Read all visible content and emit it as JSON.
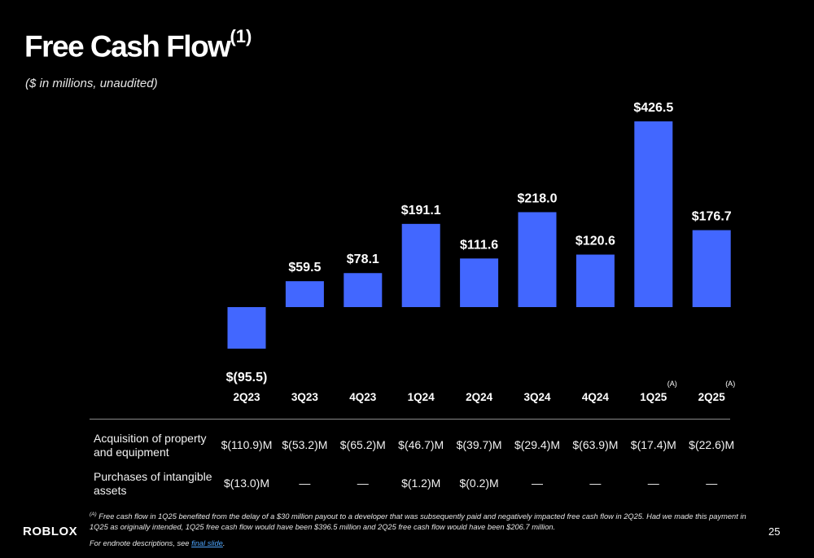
{
  "header": {
    "title": "Free Cash Flow",
    "title_note": "(1)",
    "subtitle": "($ in millions, unaudited)"
  },
  "chart_data": {
    "type": "bar",
    "categories": [
      "2Q23",
      "3Q23",
      "4Q23",
      "1Q24",
      "2Q24",
      "3Q24",
      "4Q24",
      "1Q25",
      "2Q25"
    ],
    "category_notes": [
      "",
      "",
      "",
      "",
      "",
      "",
      "",
      "(A)",
      "(A)"
    ],
    "series": [
      {
        "values": [
          -95.5,
          59.5,
          78.1,
          191.1,
          111.6,
          218.0,
          120.6,
          426.5,
          176.7
        ]
      }
    ],
    "data_labels": [
      "$(95.5)",
      "$59.5",
      "$78.1",
      "$191.1",
      "$111.6",
      "$218.0",
      "$120.6",
      "$426.5",
      "$176.7"
    ],
    "bar_color": "#4267FF",
    "ylim": [
      -95.5,
      426.5
    ],
    "grid": false
  },
  "table": {
    "rows": [
      {
        "label": "Acquisition of property and equipment",
        "values": [
          "$(110.9)M",
          "$(53.2)M",
          "$(65.2)M",
          "$(46.7)M",
          "$(39.7)M",
          "$(29.4)M",
          "$(63.9)M",
          "$(17.4)M",
          "$(22.6)M"
        ]
      },
      {
        "label": "Purchases of intangible assets",
        "values": [
          "$(13.0)M",
          "—",
          "—",
          "$(1.2)M",
          "$(0.2)M",
          "—",
          "—",
          "—",
          "—"
        ]
      }
    ]
  },
  "footnote": {
    "marker": "(A)",
    "text": "Free cash flow in 1Q25 benefited from the delay of a $30 million payout to a developer that was subsequently paid and negatively impacted free cash flow in 2Q25. Had we made this payment in 1Q25 as originally intended, 1Q25 free cash flow would have been $396.5 million and 2Q25 free cash flow would have been $206.7 million."
  },
  "endnote": {
    "prefix": "For endnote descriptions, see ",
    "link_text": "final slide",
    "suffix": "."
  },
  "brand": {
    "logo_text": "ROBLOX"
  },
  "page": {
    "number": "25"
  }
}
